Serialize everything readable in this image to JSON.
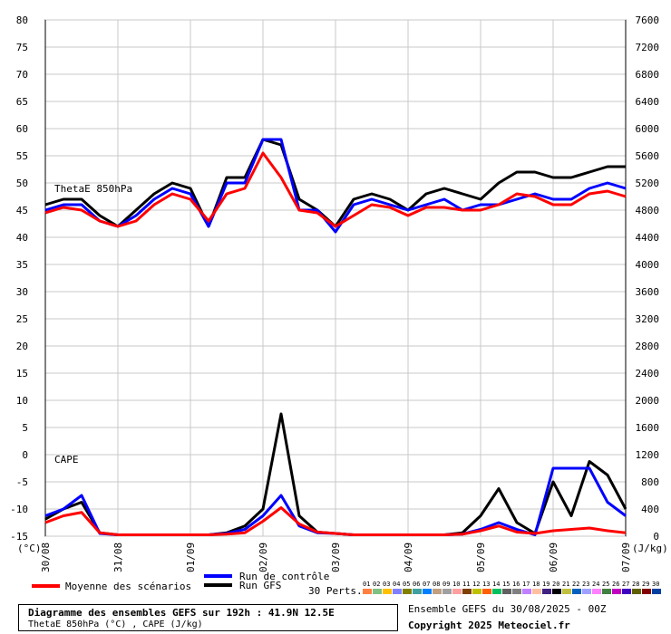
{
  "chart_data": {
    "type": "line",
    "x": [
      "30/08",
      "31/08",
      "01/09",
      "02/09",
      "03/09",
      "04/09",
      "05/09",
      "06/09",
      "07/09"
    ],
    "left_axis": {
      "unit_label": "(°C)",
      "ticks": [
        80,
        75,
        70,
        65,
        60,
        55,
        50,
        45,
        40,
        35,
        30,
        25,
        20,
        15,
        10,
        5,
        0,
        -5,
        -10,
        -15
      ],
      "range": [
        -15,
        80
      ]
    },
    "right_axis": {
      "unit_label": "(J/kg)",
      "ticks": [
        7600,
        7200,
        6800,
        6400,
        6000,
        5600,
        5200,
        4800,
        4400,
        4000,
        3600,
        3200,
        2800,
        2400,
        2000,
        1600,
        1200,
        800,
        400,
        0
      ],
      "range": [
        0,
        7600
      ]
    },
    "annotations": {
      "thetae": "ThetaE 850hPa",
      "cape": "CAPE"
    },
    "time_steps": [
      0,
      6,
      12,
      18,
      24,
      30,
      36,
      42,
      48,
      54,
      60,
      66,
      72,
      78,
      84,
      90,
      96,
      102,
      108,
      114,
      120,
      126,
      132,
      138,
      144,
      150,
      156,
      162,
      168,
      174,
      180,
      186,
      192
    ],
    "series": [
      {
        "name": "Moyenne des scénarios",
        "color": "#ff0000",
        "thetae": [
          44.5,
          45.5,
          45,
          43,
          42,
          43,
          46,
          48,
          47,
          43,
          48,
          49,
          55.5,
          51,
          45,
          44.5,
          42,
          44,
          46,
          45.5,
          44,
          45.5,
          45.5,
          45,
          45,
          46,
          48,
          47.5,
          46,
          46,
          48,
          48.5,
          47.5
        ],
        "cape": [
          200,
          300,
          350,
          50,
          20,
          20,
          20,
          20,
          20,
          20,
          30,
          50,
          220,
          420,
          180,
          60,
          40,
          20,
          20,
          20,
          20,
          20,
          20,
          30,
          80,
          150,
          60,
          40,
          80,
          100,
          120,
          80,
          50
        ]
      },
      {
        "name": "Run de contrôle",
        "color": "#0000ff",
        "thetae": [
          45,
          46,
          46,
          43,
          42,
          44,
          47,
          49,
          48,
          42,
          50,
          50,
          58,
          58,
          45,
          45,
          41,
          46,
          47,
          46,
          45,
          46,
          47,
          45,
          46,
          46,
          47,
          48,
          47,
          47,
          49,
          50,
          49
        ],
        "cape": [
          300,
          400,
          600,
          40,
          20,
          20,
          20,
          20,
          20,
          20,
          40,
          100,
          300,
          600,
          150,
          50,
          40,
          20,
          20,
          20,
          20,
          20,
          20,
          30,
          100,
          200,
          100,
          20,
          1000,
          1000,
          1000,
          500,
          300
        ]
      },
      {
        "name": "Run GFS",
        "color": "#000000",
        "thetae": [
          46,
          47,
          47,
          44,
          42,
          45,
          48,
          50,
          49,
          42,
          51,
          51,
          58,
          57,
          47,
          45,
          42,
          47,
          48,
          47,
          45,
          48,
          49,
          48,
          47,
          50,
          52,
          52,
          51,
          51,
          52,
          53,
          53
        ],
        "cape": [
          250,
          400,
          500,
          50,
          20,
          20,
          20,
          20,
          20,
          20,
          50,
          150,
          400,
          1800,
          300,
          60,
          40,
          20,
          20,
          20,
          20,
          20,
          20,
          50,
          300,
          700,
          200,
          40,
          800,
          300,
          1100,
          900,
          400
        ]
      }
    ],
    "grid": true
  },
  "legend": {
    "mean": "Moyenne des scénarios",
    "control": "Run de contrôle",
    "gfs": "Run GFS",
    "perts_label": "30 Perts.",
    "perts": [
      "01",
      "02",
      "03",
      "04",
      "05",
      "06",
      "07",
      "08",
      "09",
      "10",
      "11",
      "12",
      "13",
      "14",
      "15",
      "16",
      "17",
      "18",
      "19",
      "20",
      "21",
      "22",
      "23",
      "24",
      "25",
      "26",
      "27",
      "28",
      "29",
      "30"
    ],
    "pert_colors": [
      "#ff8040",
      "#80c080",
      "#ffc000",
      "#8080ff",
      "#808000",
      "#40a0a0",
      "#0080ff",
      "#c0a080",
      "#a0a0a0",
      "#ffa0a0",
      "#804000",
      "#c0c000",
      "#ff6000",
      "#00c060",
      "#606060",
      "#808080",
      "#c080ff",
      "#ffc0a0",
      "#402080",
      "#000000",
      "#c0c040",
      "#0060c0",
      "#a0a0ff",
      "#ff80ff",
      "#408040",
      "#c000c0",
      "#4000c0",
      "#606000",
      "#800000",
      "#0040a0"
    ]
  },
  "footer": {
    "title": "Diagramme des ensembles GEFS sur 192h : 41.9N 12.5E",
    "subtitle": "ThetaE 850hPa (°C) , CAPE (J/kg)",
    "ensemble": "Ensemble GEFS du 30/08/2025 - 00Z",
    "copyright": "Copyright 2025 Meteociel.fr"
  }
}
